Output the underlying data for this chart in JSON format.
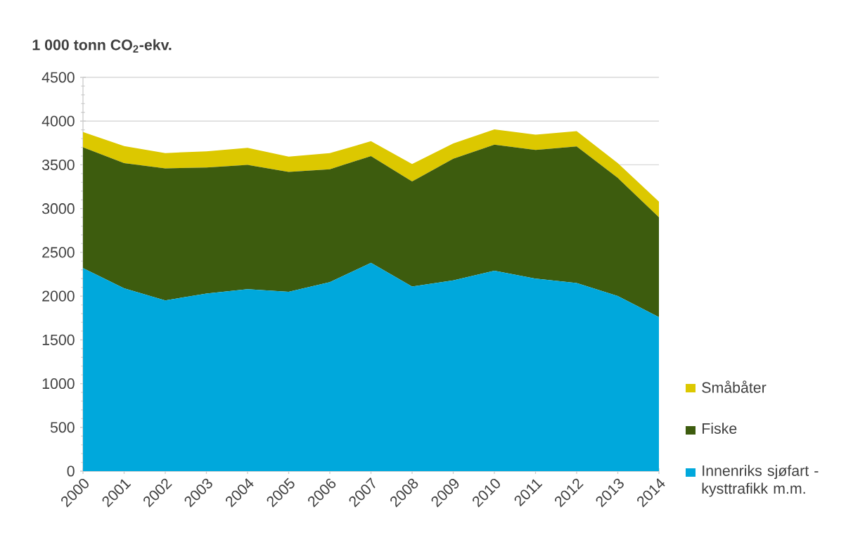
{
  "chart_data": {
    "type": "area",
    "ylabel": "1 000 tonn CO$_{2}$-ekv.",
    "categories": [
      "2000",
      "2001",
      "2002",
      "2003",
      "2004",
      "2005",
      "2006",
      "2007",
      "2008",
      "2009",
      "2010",
      "2011",
      "2012",
      "2013",
      "2014"
    ],
    "stacked": true,
    "series": [
      {
        "name": "Innenriks sjøfart - kysttrafikk m.m.",
        "color": "#00a8dc",
        "values": [
          2320,
          2090,
          1950,
          2030,
          2080,
          2050,
          2160,
          2380,
          2110,
          2180,
          2290,
          2200,
          2150,
          2000,
          1760
        ]
      },
      {
        "name": "Fiske",
        "color": "#3d5c0e",
        "values": [
          1380,
          1430,
          1510,
          1440,
          1420,
          1370,
          1290,
          1220,
          1200,
          1390,
          1440,
          1470,
          1560,
          1350,
          1140
        ]
      },
      {
        "name": "Småbåter",
        "color": "#dcc800",
        "values": [
          175,
          195,
          175,
          185,
          195,
          175,
          185,
          170,
          200,
          175,
          175,
          175,
          175,
          170,
          180
        ]
      }
    ],
    "ylim": [
      0,
      4500
    ],
    "yticks": [
      0,
      500,
      1000,
      1500,
      2000,
      2500,
      3000,
      3500,
      4000,
      4500
    ],
    "grid": "y",
    "legend": "right"
  }
}
